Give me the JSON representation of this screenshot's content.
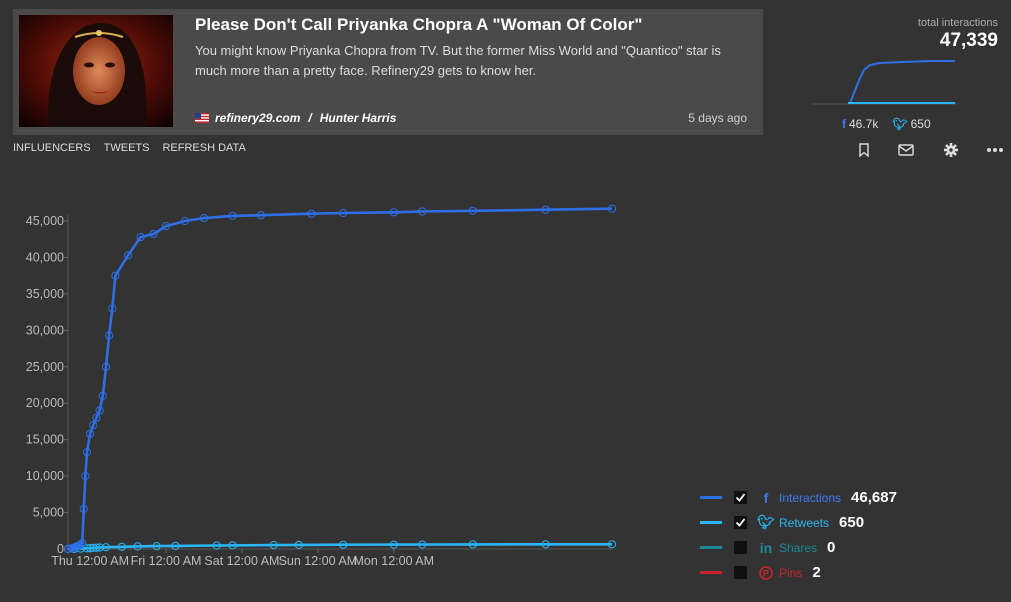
{
  "article": {
    "title": "Please Don't Call Priyanka Chopra A \"Woman Of Color\"",
    "description": "You might know Priyanka Chopra from TV. But the former Miss World and \"Quantico\" star is much more than a pretty face. Refinery29 gets to know her.",
    "source": "refinery29.com",
    "separator": "/",
    "author": "Hunter Harris",
    "time_ago": "5 days ago"
  },
  "totals": {
    "label": "total interactions",
    "value": "47,339",
    "facebook": "46.7k",
    "twitter": "650"
  },
  "nav": [
    "INFLUENCERS",
    "TWEETS",
    "REFRESH DATA"
  ],
  "icons": [
    "bookmark-icon",
    "mail-icon",
    "gear-icon",
    "more-icon"
  ],
  "colors": {
    "interactions": "#2e6fe8",
    "retweets": "#29b5f6",
    "shares": "#1b8a96",
    "pins": "#c8232c"
  },
  "legend": [
    {
      "label": "Interactions",
      "value": "46,687",
      "checked": true,
      "icon": "facebook-icon"
    },
    {
      "label": "Retweets",
      "value": "650",
      "checked": true,
      "icon": "twitter-icon"
    },
    {
      "label": "Shares",
      "value": "0",
      "checked": false,
      "icon": "linkedin-icon"
    },
    {
      "label": "Pins",
      "value": "2",
      "checked": false,
      "icon": "pinterest-icon"
    }
  ],
  "chart_data": {
    "type": "line",
    "x_ticks": [
      "Thu 12:00 AM",
      "Fri 12:00 AM",
      "Sat 12:00 AM",
      "Sun 12:00 AM",
      "Mon 12:00 AM"
    ],
    "y_ticks": [
      "0",
      "5,000",
      "10,000",
      "15,000",
      "20,000",
      "25,000",
      "30,000",
      "35,000",
      "40,000",
      "45,000"
    ],
    "ylim": [
      0,
      45000
    ],
    "x_unit": "hours since Thu 12:00 AM",
    "series": [
      {
        "name": "Interactions",
        "x": [
          -7,
          -6,
          -5,
          -4.5,
          -4,
          -3.5,
          -3,
          -2.5,
          -2,
          -1.5,
          -1,
          0,
          1,
          2,
          3,
          4,
          5,
          6,
          7,
          8,
          12,
          16,
          20,
          24,
          30,
          36,
          45,
          54,
          70,
          80,
          96,
          105,
          121,
          144,
          165
        ],
        "y": [
          0,
          100,
          200,
          300,
          400,
          500,
          600,
          800,
          5500,
          10000,
          13300,
          15800,
          17000,
          18000,
          19000,
          21000,
          25000,
          29300,
          33000,
          37500,
          40300,
          42800,
          43200,
          44300,
          45000,
          45400,
          45700,
          45800,
          46000,
          46100,
          46200,
          46300,
          46400,
          46550,
          46687
        ]
      },
      {
        "name": "Retweets",
        "x": [
          -7,
          -5,
          -3,
          -1,
          0,
          1,
          2,
          3,
          5,
          10,
          15,
          21,
          27,
          40,
          45,
          58,
          66,
          80,
          96,
          105,
          121,
          144,
          165
        ],
        "y": [
          0,
          20,
          50,
          90,
          120,
          150,
          180,
          210,
          250,
          300,
          350,
          400,
          430,
          480,
          500,
          530,
          560,
          590,
          610,
          620,
          630,
          640,
          650
        ]
      },
      {
        "name": "Shares",
        "x": [
          -7,
          165
        ],
        "y": [
          0,
          0
        ]
      },
      {
        "name": "Pins",
        "x": [
          -7,
          165
        ],
        "y": [
          0,
          2
        ]
      }
    ]
  }
}
